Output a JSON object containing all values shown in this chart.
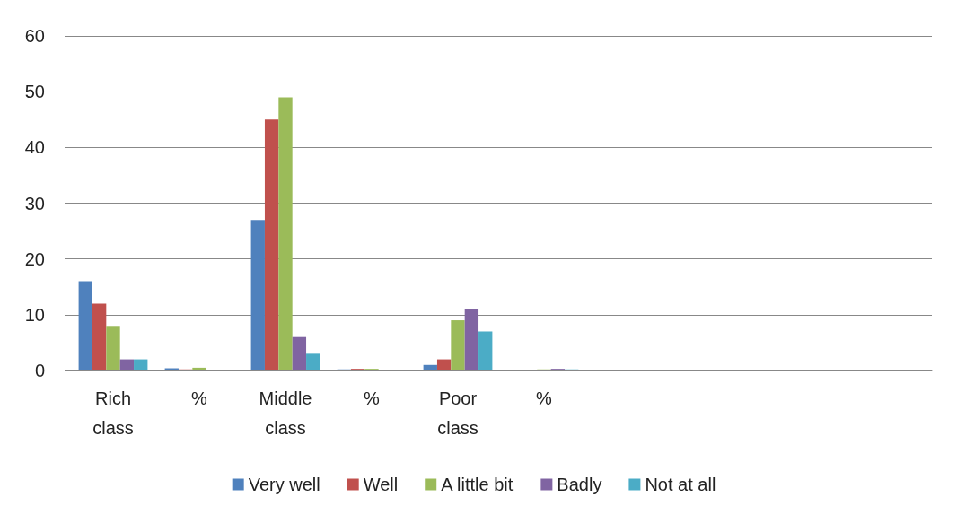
{
  "chart_data": {
    "type": "bar",
    "categories": [
      "Rich class",
      "%",
      "Middle class",
      "%",
      "Poor class",
      "%",
      null,
      null,
      null,
      null
    ],
    "series": [
      {
        "name": "Very well",
        "color": "#4f81bd",
        "values": [
          16,
          0.4,
          27,
          0.2,
          1,
          0,
          null,
          null,
          null,
          null
        ]
      },
      {
        "name": "Well",
        "color": "#c0504d",
        "values": [
          12,
          0.2,
          45,
          0.3,
          2,
          0,
          null,
          null,
          null,
          null
        ]
      },
      {
        "name": "A little bit",
        "color": "#9bbb59",
        "values": [
          8,
          0.5,
          49,
          0.3,
          9,
          0.2,
          null,
          null,
          null,
          null
        ]
      },
      {
        "name": "Badly",
        "color": "#8064a2",
        "values": [
          2,
          0,
          6,
          0,
          11,
          0.3,
          null,
          null,
          null,
          null
        ]
      },
      {
        "name": "Not at all",
        "color": "#4bacc6",
        "values": [
          2,
          0,
          3,
          0,
          7,
          0.2,
          null,
          null,
          null,
          null
        ]
      }
    ],
    "ylim": [
      0,
      60
    ],
    "yticks": [
      0,
      10,
      20,
      30,
      40,
      50,
      60
    ],
    "grid": "y",
    "legend": "bottom"
  }
}
